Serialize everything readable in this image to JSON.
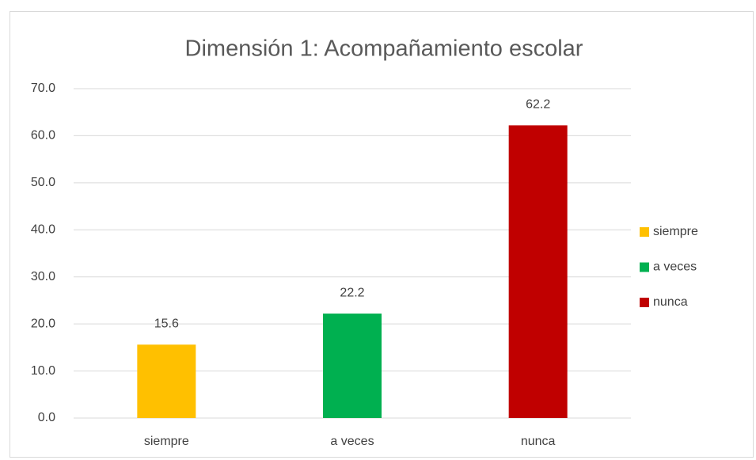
{
  "chart_data": {
    "type": "bar",
    "title": "Dimensión 1: Acompañamiento escolar",
    "categories": [
      "siempre",
      "a veces",
      "nunca"
    ],
    "values": [
      15.6,
      22.2,
      62.2
    ],
    "colors": [
      "#ffc000",
      "#00b050",
      "#c00000"
    ],
    "ylim": [
      0,
      70
    ],
    "yticks": [
      {
        "value": 0,
        "label": "0.0"
      },
      {
        "value": 10,
        "label": "10.0"
      },
      {
        "value": 20,
        "label": "20.0"
      },
      {
        "value": 30,
        "label": "30.0"
      },
      {
        "value": 40,
        "label": "40.0"
      },
      {
        "value": 50,
        "label": "50.0"
      },
      {
        "value": 60,
        "label": "60.0"
      },
      {
        "value": 70,
        "label": "70.0"
      }
    ],
    "grid": true,
    "legend": "right"
  }
}
